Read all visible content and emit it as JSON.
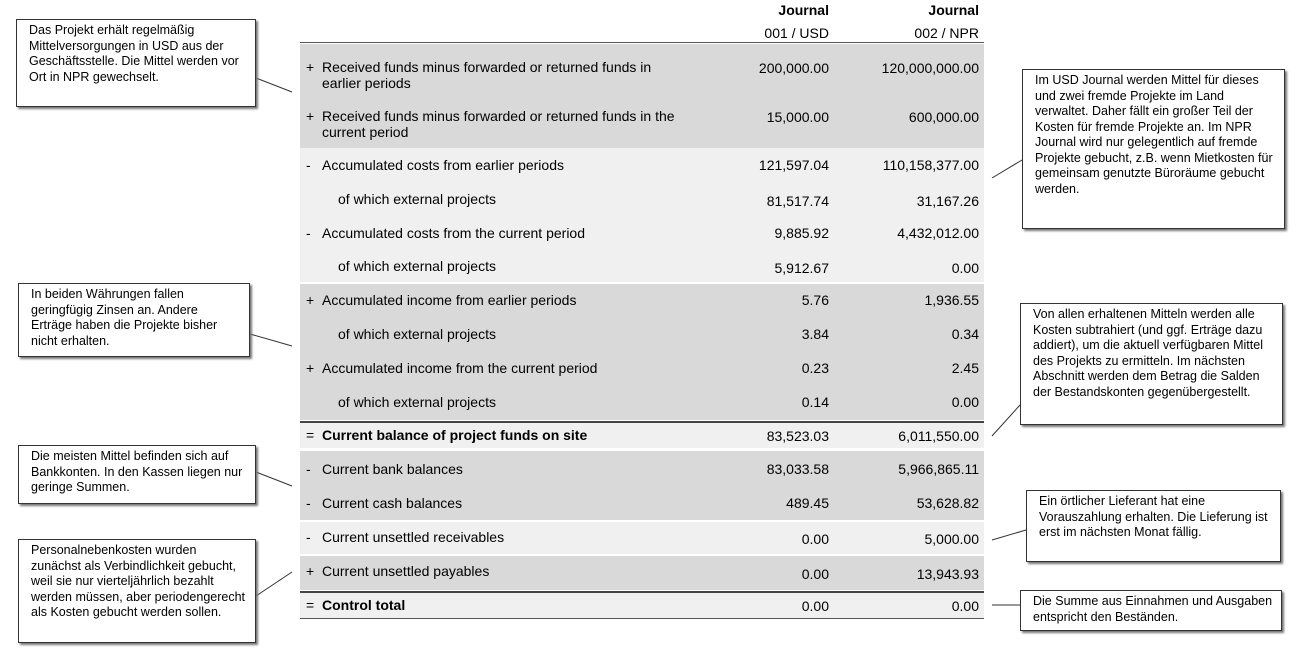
{
  "header": {
    "journal_label_1": "Journal",
    "currency_1": "001 / USD",
    "journal_label_2": "Journal",
    "currency_2": "002 / NPR"
  },
  "rows": [
    {
      "sign": "+",
      "label": "Received funds minus forwarded or returned funds in earlier periods",
      "v1": "200,000.00",
      "v2": "120,000,000.00"
    },
    {
      "sign": "+",
      "label": "Received funds minus forwarded or returned funds in the current period",
      "v1": "15,000.00",
      "v2": "600,000.00"
    },
    {
      "sign": "-",
      "label": "Accumulated costs from earlier periods",
      "v1": "121,597.04",
      "v2": "110,158,377.00"
    },
    {
      "sign": "",
      "label": "of which external projects",
      "v1": "81,517.74",
      "v2": "31,167.26"
    },
    {
      "sign": "-",
      "label": "Accumulated costs from the current period",
      "v1": "9,885.92",
      "v2": "4,432,012.00"
    },
    {
      "sign": "",
      "label": "of which external projects",
      "v1": "5,912.67",
      "v2": "0.00"
    },
    {
      "sign": "+",
      "label": "Accumulated income from earlier periods",
      "v1": "5.76",
      "v2": "1,936.55"
    },
    {
      "sign": "",
      "label": "of which external projects",
      "v1": "3.84",
      "v2": "0.34"
    },
    {
      "sign": "+",
      "label": "Accumulated income from the current period",
      "v1": "0.23",
      "v2": "2.45"
    },
    {
      "sign": "",
      "label": "of which external projects",
      "v1": "0.14",
      "v2": "0.00"
    },
    {
      "sign": "=",
      "label": "Current balance of project funds on site",
      "v1": "83,523.03",
      "v2": "6,011,550.00"
    },
    {
      "sign": "-",
      "label": "Current bank balances",
      "v1": "83,033.58",
      "v2": "5,966,865.11"
    },
    {
      "sign": "-",
      "label": "Current cash balances",
      "v1": "489.45",
      "v2": "53,628.82"
    },
    {
      "sign": "-",
      "label": "Current unsettled receivables",
      "v1": "0.00",
      "v2": "5,000.00"
    },
    {
      "sign": "+",
      "label": "Current unsettled payables",
      "v1": "0.00",
      "v2": "13,943.93"
    },
    {
      "sign": "=",
      "label": "Control total",
      "v1": "0.00",
      "v2": "0.00"
    }
  ],
  "notes": {
    "funds_supply": "Das Projekt erhält regelmäßig Mittelversorgungen in USD aus der Geschäftsstelle. Die Mittel werden vor Ort in NPR gewechselt.",
    "interest": "In beiden Währungen fallen geringfügig Zinsen an. Andere Erträge haben die Projekte bisher nicht erhalten.",
    "bank_accounts": "Die meisten Mittel befinden sich auf Bankkonten. In den Kassen liegen nur geringe Summen.",
    "personnel_costs": "Personalnebenkosten wurden zunächst als Verbindlichkeit gebucht, weil sie nur vierteljährlich bezahlt werden müssen, aber periodengerecht als Kosten gebucht werden sollen.",
    "usd_journal": "Im USD Journal werden Mittel für dieses und zwei fremde Projekte im Land verwaltet. Daher fällt ein großer Teil der Kosten für fremde Projekte an. Im NPR Journal wird nur gelegentlich auf fremde Projekte gebucht, z.B. wenn Mietkosten für gemeinsam genutzte Büroräume gebucht werden.",
    "available_funds": "Von allen erhaltenen Mitteln werden alle Kosten subtrahiert (und ggf. Erträge dazu addiert), um die aktuell verfügbaren Mittel des Projekts zu ermitteln. Im nächsten Abschnitt werden dem Betrag die Salden der Bestandskonten gegenübergestellt.",
    "supplier": "Ein örtlicher Lieferant hat eine Vorauszahlung erhalten. Die Lieferung ist erst im nächsten Monat fällig.",
    "control_sum": "Die Summe aus Einnahmen und Ausgaben entspricht den Beständen."
  }
}
